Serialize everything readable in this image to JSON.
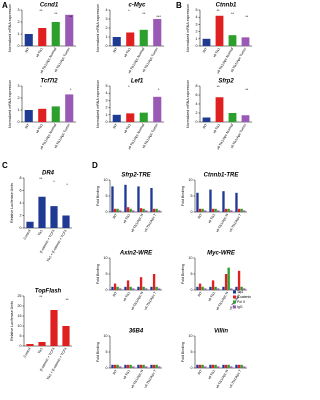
{
  "chart_data": [
    {
      "type": "bar",
      "panel": "A",
      "title": "Ccnd1",
      "ylabel": "Normalized mRNA expression",
      "categories": [
        "WT",
        "vil-Tlx1",
        "vil-Tlx1/Apc Normal",
        "vil-Tlx1/Apc Tumor"
      ],
      "values": [
        1,
        1.5,
        2,
        2.6
      ],
      "colors": [
        "#1f3a93",
        "#e02020",
        "#2ca02c",
        "#9b59b6"
      ],
      "ylim": [
        0,
        3
      ],
      "yticks": [
        0,
        1,
        2,
        3
      ],
      "annotations": [
        "**",
        "**",
        "**"
      ]
    },
    {
      "type": "bar",
      "title": "c-Myc",
      "ylabel": "Normalized mRNA expression",
      "categories": [
        "WT",
        "vil-Tlx1",
        "vil-Tlx1/Apc Normal",
        "vil-Tlx1/Apc Tumor"
      ],
      "values": [
        1,
        1.5,
        1.8,
        3
      ],
      "colors": [
        "#1f3a93",
        "#e02020",
        "#2ca02c",
        "#9b59b6"
      ],
      "ylim": [
        0,
        4
      ],
      "yticks": [
        0,
        1,
        2,
        3,
        4
      ],
      "annotations": [
        "*",
        "**",
        "***"
      ]
    },
    {
      "type": "bar",
      "title": "Tcf7l2",
      "ylabel": "Normalized mRNA expression",
      "categories": [
        "WT",
        "vil-Tlx1",
        "vil-Tlx1/Apc Normal",
        "vil-Tlx1/Apc Tumor"
      ],
      "values": [
        1,
        1.1,
        1.3,
        2.3
      ],
      "colors": [
        "#1f3a93",
        "#e02020",
        "#2ca02c",
        "#9b59b6"
      ],
      "ylim": [
        0,
        3
      ],
      "yticks": [
        0,
        1,
        2,
        3
      ],
      "annotations": [
        "*",
        "*"
      ]
    },
    {
      "type": "bar",
      "title": "Lef1",
      "ylabel": "Normalized mRNA expression",
      "categories": [
        "WT",
        "vil-Tlx1",
        "vil-Tlx1/Apc Normal",
        "vil-Tlx1/Apc Tumor"
      ],
      "values": [
        1,
        1.2,
        1.3,
        3.5
      ],
      "colors": [
        "#1f3a93",
        "#e02020",
        "#2ca02c",
        "#9b59b6"
      ],
      "ylim": [
        0,
        5
      ],
      "yticks": [
        0,
        1,
        2,
        3,
        4,
        5
      ],
      "annotations": [
        "*",
        "*"
      ]
    },
    {
      "type": "bar",
      "panel": "B",
      "title": "Ctnnb1",
      "ylabel": "Normalized mRNA expression",
      "categories": [
        "WT",
        "vil-Tlx1",
        "vil-Tlx1/Apc Normal",
        "vil-Tlx1/Apc Tumor"
      ],
      "values": [
        1,
        4.2,
        1.5,
        1.2
      ],
      "colors": [
        "#1f3a93",
        "#e02020",
        "#2ca02c",
        "#9b59b6"
      ],
      "ylim": [
        0,
        5
      ],
      "yticks": [
        0,
        1,
        2,
        3,
        4,
        5
      ],
      "annotations": [
        "**",
        "**",
        "**"
      ]
    },
    {
      "type": "bar",
      "title": "Sfrp2",
      "ylabel": "Normalized mRNA expression",
      "categories": [
        "WT",
        "vil-Tlx1",
        "vil-Tlx1/Apc Normal",
        "vil-Tlx1/Apc Tumor"
      ],
      "values": [
        1,
        5.5,
        2,
        1.5
      ],
      "colors": [
        "#1f3a93",
        "#e02020",
        "#2ca02c",
        "#9b59b6"
      ],
      "ylim": [
        0,
        8
      ],
      "yticks": [
        0,
        2,
        4,
        6,
        8
      ],
      "annotations": [
        "**",
        "**"
      ]
    },
    {
      "type": "bar",
      "panel": "C",
      "title": "DR4",
      "ylabel": "Relative Luciferase Units",
      "categories": [
        "Control",
        "Tlx1",
        "β-catenin + TCF4",
        "Tlx1 + β-catenin + TCF4"
      ],
      "values": [
        1,
        5,
        3.5,
        2
      ],
      "colors": [
        "#1f3a93",
        "#1f3a93",
        "#1f3a93",
        "#1f3a93"
      ],
      "ylim": [
        0,
        8
      ],
      "yticks": [
        0,
        2,
        4,
        6,
        8
      ],
      "annotations": [
        "**",
        "*",
        "*"
      ]
    },
    {
      "type": "bar",
      "title": "TopFlash",
      "ylabel": "Relative Luciferase Units",
      "categories": [
        "Control",
        "Tlx1",
        "β-catenin + TCF4",
        "Tlx1 + β-catenin + TCF4"
      ],
      "values": [
        1,
        2,
        18,
        10
      ],
      "colors": [
        "#e02020",
        "#e02020",
        "#e02020",
        "#e02020"
      ],
      "ylim": [
        0,
        25
      ],
      "yticks": [
        0,
        5,
        10,
        15,
        20,
        25
      ],
      "annotations": [
        "**",
        "**"
      ]
    },
    {
      "type": "grouped_bar",
      "panel": "D",
      "title": "Sfrp2-TRE",
      "ylabel": "Fold Binding",
      "categories": [
        "WT",
        "vil-Tlx1",
        "vil-Tlx1/Apc N",
        "vil-Tlx1/Apc T"
      ],
      "ylim": [
        0,
        10
      ],
      "yticks": [
        0,
        5,
        10
      ],
      "series": [
        {
          "name": "Tlx1",
          "color": "#1f3a93",
          "values": [
            8,
            8.5,
            8,
            7.5
          ]
        },
        {
          "name": "β-catenin",
          "color": "#e02020",
          "values": [
            1,
            1.5,
            1.2,
            1
          ]
        },
        {
          "name": "Pol II",
          "color": "#2ca02c",
          "values": [
            1,
            1,
            1,
            1
          ]
        },
        {
          "name": "IgG",
          "color": "#9b59b6",
          "values": [
            0.5,
            0.5,
            0.5,
            0.5
          ]
        }
      ]
    },
    {
      "type": "grouped_bar",
      "title": "Ctnnb1-TRE",
      "ylabel": "Fold Binding",
      "categories": [
        "WT",
        "vil-Tlx1",
        "vil-Tlx1/Apc N",
        "vil-Tlx1/Apc T"
      ],
      "ylim": [
        0,
        10
      ],
      "yticks": [
        0,
        5,
        10
      ],
      "series": [
        {
          "name": "Tlx1",
          "color": "#1f3a93",
          "values": [
            6,
            7,
            6.5,
            6
          ]
        },
        {
          "name": "β-catenin",
          "color": "#e02020",
          "values": [
            1,
            1,
            1,
            1
          ]
        },
        {
          "name": "Pol II",
          "color": "#2ca02c",
          "values": [
            1,
            1,
            1,
            1
          ]
        },
        {
          "name": "IgG",
          "color": "#9b59b6",
          "values": [
            0.5,
            0.5,
            0.5,
            0.5
          ]
        }
      ]
    },
    {
      "type": "grouped_bar",
      "title": "Axin2-WRE",
      "ylabel": "Fold Binding",
      "categories": [
        "WT",
        "vil-Tlx1",
        "vil-Tlx1/Apc N",
        "vil-Tlx1/Apc T"
      ],
      "ylim": [
        0,
        10
      ],
      "yticks": [
        0,
        5,
        10
      ],
      "series": [
        {
          "name": "Tlx1",
          "color": "#1f3a93",
          "values": [
            1,
            1,
            1,
            1
          ]
        },
        {
          "name": "β-catenin",
          "color": "#e02020",
          "values": [
            2,
            3,
            4,
            5
          ]
        },
        {
          "name": "Pol II",
          "color": "#2ca02c",
          "values": [
            1,
            1,
            1,
            1
          ]
        },
        {
          "name": "IgG",
          "color": "#9b59b6",
          "values": [
            0.5,
            0.5,
            0.5,
            0.5
          ]
        }
      ]
    },
    {
      "type": "grouped_bar",
      "title": "Myc-WRE",
      "ylabel": "Fold Binding",
      "categories": [
        "WT",
        "vil-Tlx1",
        "vil-Tlx1/Apc N",
        "vil-Tlx1/Apc T"
      ],
      "ylim": [
        0,
        10
      ],
      "yticks": [
        0,
        5,
        10
      ],
      "series": [
        {
          "name": "Tlx1",
          "color": "#1f3a93",
          "values": [
            1,
            1,
            1,
            1
          ]
        },
        {
          "name": "β-catenin",
          "color": "#e02020",
          "values": [
            2,
            3,
            5,
            6
          ]
        },
        {
          "name": "Pol II",
          "color": "#2ca02c",
          "values": [
            1,
            1,
            7,
            1
          ]
        },
        {
          "name": "IgG",
          "color": "#9b59b6",
          "values": [
            0.5,
            0.5,
            0.5,
            0.5
          ]
        }
      ]
    },
    {
      "type": "grouped_bar",
      "title": "36B4",
      "ylabel": "Fold Binding",
      "categories": [
        "WT",
        "vil-Tlx1",
        "vil-Tlx1/Apc N",
        "vil-Tlx1/Apc T"
      ],
      "ylim": [
        0,
        10
      ],
      "yticks": [
        0,
        5,
        10
      ],
      "series": [
        {
          "name": "Tlx1",
          "color": "#1f3a93",
          "values": [
            1,
            1,
            1,
            1
          ]
        },
        {
          "name": "β-catenin",
          "color": "#e02020",
          "values": [
            1,
            1,
            1,
            1
          ]
        },
        {
          "name": "Pol II",
          "color": "#2ca02c",
          "values": [
            1,
            1,
            1,
            1
          ]
        },
        {
          "name": "IgG",
          "color": "#9b59b6",
          "values": [
            0.5,
            0.5,
            0.5,
            0.5
          ]
        }
      ]
    },
    {
      "type": "grouped_bar",
      "title": "Villin",
      "ylabel": "Fold Binding",
      "categories": [
        "WT",
        "vil-Tlx1",
        "vil-Tlx1/Apc N",
        "vil-Tlx1/Apc T"
      ],
      "ylim": [
        0,
        10
      ],
      "yticks": [
        0,
        5,
        10
      ],
      "series": [
        {
          "name": "Tlx1",
          "color": "#1f3a93",
          "values": [
            1,
            1,
            1,
            1
          ]
        },
        {
          "name": "β-catenin",
          "color": "#e02020",
          "values": [
            1,
            1,
            1,
            1
          ]
        },
        {
          "name": "Pol II",
          "color": "#2ca02c",
          "values": [
            1,
            1,
            1,
            1
          ]
        },
        {
          "name": "IgG",
          "color": "#9b59b6",
          "values": [
            0.5,
            0.5,
            0.5,
            0.5
          ]
        }
      ]
    }
  ]
}
